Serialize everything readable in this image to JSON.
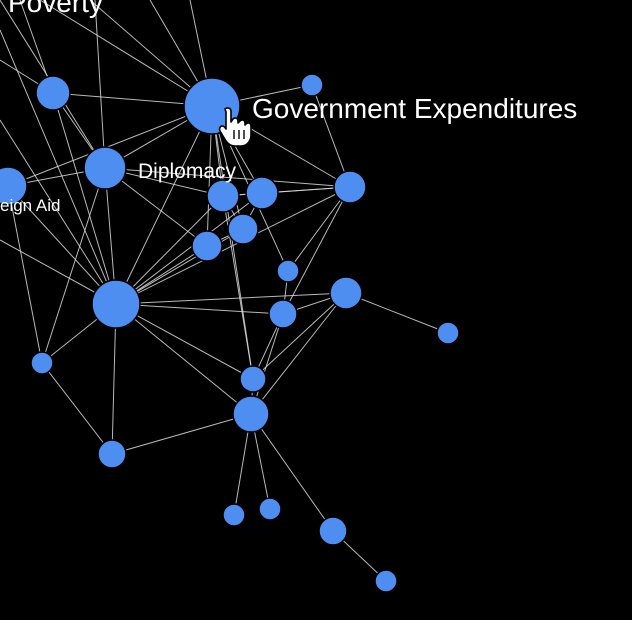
{
  "colors": {
    "background": "#000000",
    "node": "#4d8ef0",
    "edge": "#d8d8d8",
    "label": "#ffffff"
  },
  "labels": {
    "poverty": "Poverty",
    "government_expenditures": "Government Expenditures",
    "diplomacy": "Diplomacy",
    "foreign_aid": "eign Aid"
  },
  "cursor": {
    "icon": "hand-pointer-icon"
  },
  "nodes": [
    {
      "id": "government-expenditures",
      "label_key": "government_expenditures"
    },
    {
      "id": "diplomacy",
      "label_key": "diplomacy"
    },
    {
      "id": "foreign-aid",
      "label_key": "foreign_aid"
    },
    {
      "id": "hub-large"
    },
    {
      "id": "node-top-left"
    },
    {
      "id": "node-top-small"
    },
    {
      "id": "node-cluster-a"
    },
    {
      "id": "node-cluster-b"
    },
    {
      "id": "node-right-1"
    },
    {
      "id": "node-cluster-c"
    },
    {
      "id": "node-cluster-d"
    },
    {
      "id": "node-small-mid"
    },
    {
      "id": "node-right-2"
    },
    {
      "id": "node-far-right"
    },
    {
      "id": "node-mid-lower"
    },
    {
      "id": "node-left-small"
    },
    {
      "id": "node-center-low"
    },
    {
      "id": "node-hub-low"
    },
    {
      "id": "node-bottom-left"
    },
    {
      "id": "node-bottom-1"
    },
    {
      "id": "node-bottom-2"
    },
    {
      "id": "node-bottom-3"
    },
    {
      "id": "node-bottom-4"
    }
  ],
  "edges": [
    [
      "government-expenditures",
      "diplomacy"
    ],
    [
      "government-expenditures",
      "hub-large"
    ],
    [
      "government-expenditures",
      "node-top-left"
    ],
    [
      "government-expenditures",
      "node-top-small"
    ],
    [
      "government-expenditures",
      "node-cluster-a"
    ],
    [
      "government-expenditures",
      "node-cluster-b"
    ],
    [
      "government-expenditures",
      "node-right-1"
    ],
    [
      "government-expenditures",
      "node-cluster-c"
    ],
    [
      "government-expenditures",
      "node-cluster-d"
    ],
    [
      "government-expenditures",
      "node-small-mid"
    ],
    [
      "government-expenditures",
      "node-center-low"
    ],
    [
      "government-expenditures",
      "foreign-aid"
    ],
    [
      "diplomacy",
      "hub-large"
    ],
    [
      "diplomacy",
      "foreign-aid"
    ],
    [
      "diplomacy",
      "node-cluster-a"
    ],
    [
      "diplomacy",
      "node-cluster-c"
    ],
    [
      "diplomacy",
      "node-right-1"
    ],
    [
      "diplomacy",
      "node-left-small"
    ],
    [
      "diplomacy",
      "node-top-left"
    ],
    [
      "foreign-aid",
      "hub-large"
    ],
    [
      "node-top-left",
      "hub-large"
    ],
    [
      "node-cluster-a",
      "hub-large"
    ],
    [
      "node-cluster-b",
      "hub-large"
    ],
    [
      "node-cluster-c",
      "hub-large"
    ],
    [
      "node-cluster-d",
      "hub-large"
    ],
    [
      "node-right-1",
      "hub-large"
    ],
    [
      "node-right-2",
      "hub-large"
    ],
    [
      "node-mid-lower",
      "hub-large"
    ],
    [
      "node-center-low",
      "hub-large"
    ],
    [
      "node-hub-low",
      "hub-large"
    ],
    [
      "node-left-small",
      "hub-large"
    ],
    [
      "node-bottom-left",
      "hub-large"
    ],
    [
      "node-cluster-a",
      "node-cluster-b"
    ],
    [
      "node-cluster-a",
      "node-cluster-d"
    ],
    [
      "node-cluster-b",
      "node-cluster-d"
    ],
    [
      "node-cluster-b",
      "node-right-1"
    ],
    [
      "node-cluster-c",
      "node-cluster-d"
    ],
    [
      "node-cluster-a",
      "node-right-1"
    ],
    [
      "node-cluster-a",
      "node-center-low"
    ],
    [
      "node-small-mid",
      "node-mid-lower"
    ],
    [
      "node-small-mid",
      "node-right-1"
    ],
    [
      "node-right-1",
      "node-mid-lower"
    ],
    [
      "node-right-2",
      "node-mid-lower"
    ],
    [
      "node-right-2",
      "node-far-right"
    ],
    [
      "node-right-2",
      "node-center-low"
    ],
    [
      "node-right-2",
      "node-hub-low"
    ],
    [
      "node-mid-lower",
      "node-center-low"
    ],
    [
      "node-mid-lower",
      "node-hub-low"
    ],
    [
      "node-center-low",
      "node-hub-low"
    ],
    [
      "node-hub-low",
      "node-bottom-left"
    ],
    [
      "node-hub-low",
      "node-bottom-1"
    ],
    [
      "node-hub-low",
      "node-bottom-2"
    ],
    [
      "node-hub-low",
      "node-bottom-3"
    ],
    [
      "node-bottom-3",
      "node-bottom-4"
    ],
    [
      "node-left-small",
      "node-bottom-left"
    ],
    [
      "node-left-small",
      "foreign-aid"
    ],
    [
      "node-top-small",
      "node-right-1"
    ]
  ]
}
